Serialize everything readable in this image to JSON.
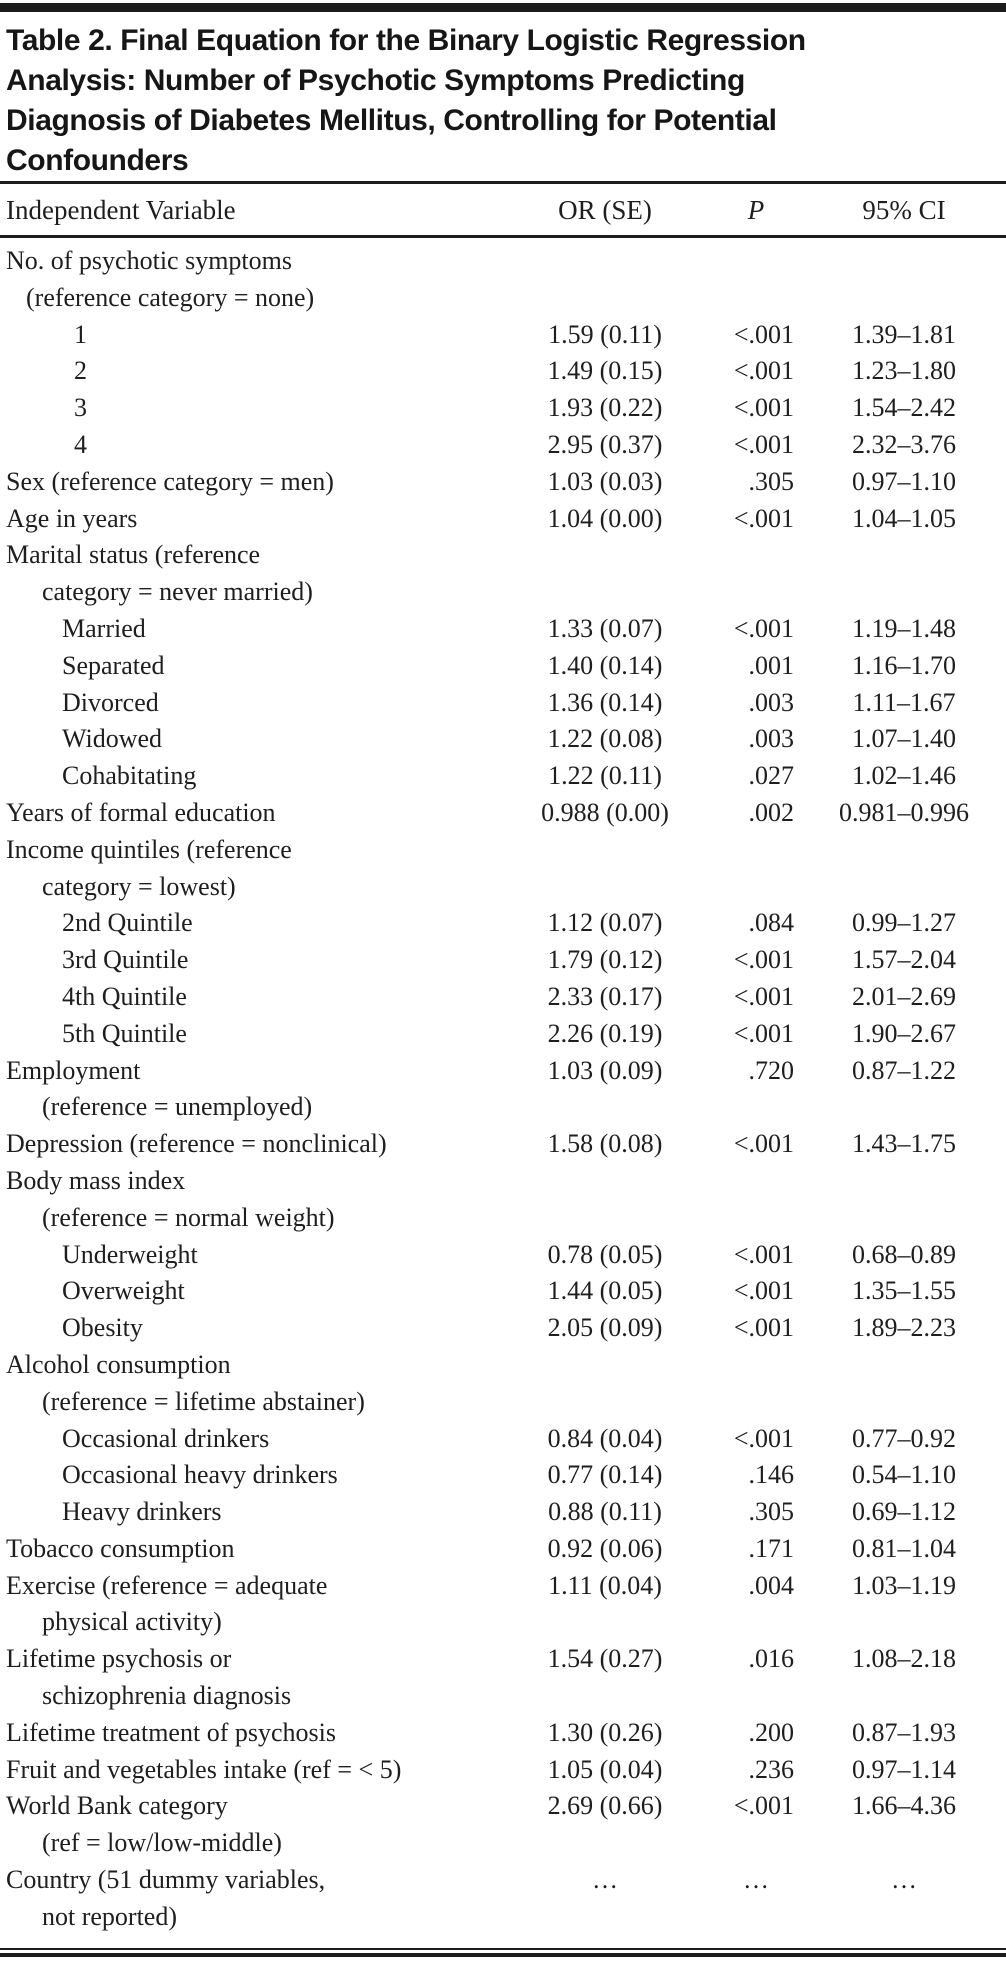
{
  "table": {
    "title_lines": [
      "Table 2. Final Equation for the Binary Logistic Regression",
      "Analysis: Number of Psychotic Symptoms Predicting",
      "Diagnosis of Diabetes Mellitus, Controlling for Potential",
      "Confounders"
    ],
    "columns": [
      "Independent Variable",
      "OR (SE)",
      "P",
      "95% CI"
    ],
    "rows": [
      {
        "label": "No. of psychotic symptoms",
        "indent": 0,
        "or_se": "",
        "p": "",
        "ci": ""
      },
      {
        "label": "(reference category = none)",
        "indent": 1,
        "or_se": "",
        "p": "",
        "ci": ""
      },
      {
        "label": "1",
        "indent": 4,
        "or_se": "1.59 (0.11)",
        "p": "<.001",
        "ci": "1.39–1.81"
      },
      {
        "label": "2",
        "indent": 4,
        "or_se": "1.49 (0.15)",
        "p": "<.001",
        "ci": "1.23–1.80"
      },
      {
        "label": "3",
        "indent": 4,
        "or_se": "1.93 (0.22)",
        "p": "<.001",
        "ci": "1.54–2.42"
      },
      {
        "label": "4",
        "indent": 4,
        "or_se": "2.95 (0.37)",
        "p": "<.001",
        "ci": "2.32–3.76"
      },
      {
        "label": "Sex (reference category = men)",
        "indent": 0,
        "or_se": "1.03 (0.03)",
        "p": ".305",
        "ci": "0.97–1.10"
      },
      {
        "label": "Age in years",
        "indent": 0,
        "or_se": "1.04 (0.00)",
        "p": "<.001",
        "ci": "1.04–1.05"
      },
      {
        "label": "Marital status (reference",
        "indent": 0,
        "or_se": "",
        "p": "",
        "ci": ""
      },
      {
        "label": "category = never married)",
        "indent": 2,
        "or_se": "",
        "p": "",
        "ci": ""
      },
      {
        "label": "Married",
        "indent": 3,
        "or_se": "1.33 (0.07)",
        "p": "<.001",
        "ci": "1.19–1.48"
      },
      {
        "label": "Separated",
        "indent": 3,
        "or_se": "1.40 (0.14)",
        "p": ".001",
        "ci": "1.16–1.70"
      },
      {
        "label": "Divorced",
        "indent": 3,
        "or_se": "1.36 (0.14)",
        "p": ".003",
        "ci": "1.11–1.67"
      },
      {
        "label": "Widowed",
        "indent": 3,
        "or_se": "1.22 (0.08)",
        "p": ".003",
        "ci": "1.07–1.40"
      },
      {
        "label": "Cohabitating",
        "indent": 3,
        "or_se": "1.22 (0.11)",
        "p": ".027",
        "ci": "1.02–1.46"
      },
      {
        "label": "Years of formal education",
        "indent": 0,
        "or_se": "0.988 (0.00)",
        "p": ".002",
        "ci": "0.981–0.996"
      },
      {
        "label": "Income quintiles (reference",
        "indent": 0,
        "or_se": "",
        "p": "",
        "ci": ""
      },
      {
        "label": "category = lowest)",
        "indent": 2,
        "or_se": "",
        "p": "",
        "ci": ""
      },
      {
        "label": "2nd Quintile",
        "indent": 3,
        "or_se": "1.12 (0.07)",
        "p": ".084",
        "ci": "0.99–1.27"
      },
      {
        "label": "3rd Quintile",
        "indent": 3,
        "or_se": "1.79 (0.12)",
        "p": "<.001",
        "ci": "1.57–2.04"
      },
      {
        "label": "4th Quintile",
        "indent": 3,
        "or_se": "2.33 (0.17)",
        "p": "<.001",
        "ci": "2.01–2.69"
      },
      {
        "label": "5th Quintile",
        "indent": 3,
        "or_se": "2.26 (0.19)",
        "p": "<.001",
        "ci": "1.90–2.67"
      },
      {
        "label": "Employment",
        "indent": 0,
        "or_se": "1.03 (0.09)",
        "p": ".720",
        "ci": "0.87–1.22"
      },
      {
        "label": "(reference = unemployed)",
        "indent": 2,
        "or_se": "",
        "p": "",
        "ci": ""
      },
      {
        "label": "Depression (reference = nonclinical)",
        "indent": 0,
        "or_se": "1.58 (0.08)",
        "p": "<.001",
        "ci": "1.43–1.75"
      },
      {
        "label": "Body mass index",
        "indent": 0,
        "or_se": "",
        "p": "",
        "ci": ""
      },
      {
        "label": "(reference = normal weight)",
        "indent": 2,
        "or_se": "",
        "p": "",
        "ci": ""
      },
      {
        "label": "Underweight",
        "indent": 3,
        "or_se": "0.78 (0.05)",
        "p": "<.001",
        "ci": "0.68–0.89"
      },
      {
        "label": "Overweight",
        "indent": 3,
        "or_se": "1.44 (0.05)",
        "p": "<.001",
        "ci": "1.35–1.55"
      },
      {
        "label": "Obesity",
        "indent": 3,
        "or_se": "2.05 (0.09)",
        "p": "<.001",
        "ci": "1.89–2.23"
      },
      {
        "label": "Alcohol consumption",
        "indent": 0,
        "or_se": "",
        "p": "",
        "ci": ""
      },
      {
        "label": "(reference = lifetime abstainer)",
        "indent": 2,
        "or_se": "",
        "p": "",
        "ci": ""
      },
      {
        "label": "Occasional drinkers",
        "indent": 3,
        "or_se": "0.84 (0.04)",
        "p": "<.001",
        "ci": "0.77–0.92"
      },
      {
        "label": "Occasional heavy drinkers",
        "indent": 3,
        "or_se": "0.77 (0.14)",
        "p": ".146",
        "ci": "0.54–1.10"
      },
      {
        "label": "Heavy drinkers",
        "indent": 3,
        "or_se": "0.88 (0.11)",
        "p": ".305",
        "ci": "0.69–1.12"
      },
      {
        "label": "Tobacco consumption",
        "indent": 0,
        "or_se": "0.92 (0.06)",
        "p": ".171",
        "ci": "0.81–1.04"
      },
      {
        "label": "Exercise (reference = adequate",
        "indent": 0,
        "or_se": "1.11 (0.04)",
        "p": ".004",
        "ci": "1.03–1.19"
      },
      {
        "label": "physical activity)",
        "indent": 2,
        "or_se": "",
        "p": "",
        "ci": ""
      },
      {
        "label": "Lifetime psychosis or",
        "indent": 0,
        "or_se": "1.54 (0.27)",
        "p": ".016",
        "ci": "1.08–2.18"
      },
      {
        "label": "schizophrenia diagnosis",
        "indent": 2,
        "or_se": "",
        "p": "",
        "ci": ""
      },
      {
        "label": "Lifetime treatment of psychosis",
        "indent": 0,
        "or_se": "1.30 (0.26)",
        "p": ".200",
        "ci": "0.87–1.93"
      },
      {
        "label": "Fruit and vegetables intake (ref = < 5)",
        "indent": 0,
        "or_se": "1.05 (0.04)",
        "p": ".236",
        "ci": "0.97–1.14"
      },
      {
        "label": "World Bank category",
        "indent": 0,
        "or_se": "2.69 (0.66)",
        "p": "<.001",
        "ci": "1.66–4.36"
      },
      {
        "label": "(ref = low/low-middle)",
        "indent": 2,
        "or_se": "",
        "p": "",
        "ci": ""
      },
      {
        "label": "Country (51 dummy variables,",
        "indent": 0,
        "or_se": "…",
        "p": "…",
        "ci": "…",
        "ellipsis": true
      },
      {
        "label": "not reported)",
        "indent": 2,
        "or_se": "",
        "p": "",
        "ci": ""
      }
    ]
  },
  "colors": {
    "text": "#1e1e1e",
    "rule": "#1c1c1c",
    "background": "#ffffff"
  }
}
